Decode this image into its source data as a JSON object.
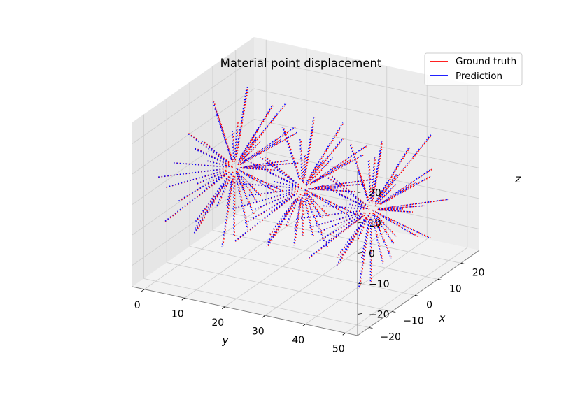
{
  "chart_data": {
    "type": "3d-displacement-field",
    "title": "Material point displacement",
    "xlabel": "x",
    "ylabel": "y",
    "zlabel": "z",
    "xlim": [
      -25,
      28
    ],
    "ylim": [
      -3,
      53
    ],
    "zlim": [
      -27,
      27
    ],
    "xticks": [
      "−20",
      "−10",
      "0",
      "10",
      "20"
    ],
    "yticks": [
      "0",
      "10",
      "20",
      "30",
      "40",
      "50"
    ],
    "zticks": [
      "−20",
      "−10",
      "0",
      "10",
      "20"
    ],
    "xtick_values": [
      -20,
      -10,
      0,
      10,
      20
    ],
    "ytick_values": [
      0,
      10,
      20,
      30,
      40,
      50
    ],
    "ztick_values": [
      -20,
      -10,
      0,
      10,
      20
    ],
    "grid": true,
    "legend_position": "top-right",
    "series": [
      {
        "name": "Ground truth",
        "color": "#ff0000",
        "line_style": "dotted"
      },
      {
        "name": "Prediction",
        "color": "#0000ff",
        "line_style": "dotted"
      }
    ],
    "bundles": [
      {
        "center_y": 8,
        "center_x": 0,
        "center_z": 2
      },
      {
        "center_y": 25,
        "center_x": 0,
        "center_z": 0
      },
      {
        "center_y": 42,
        "center_x": 0,
        "center_z": -2
      }
    ]
  }
}
